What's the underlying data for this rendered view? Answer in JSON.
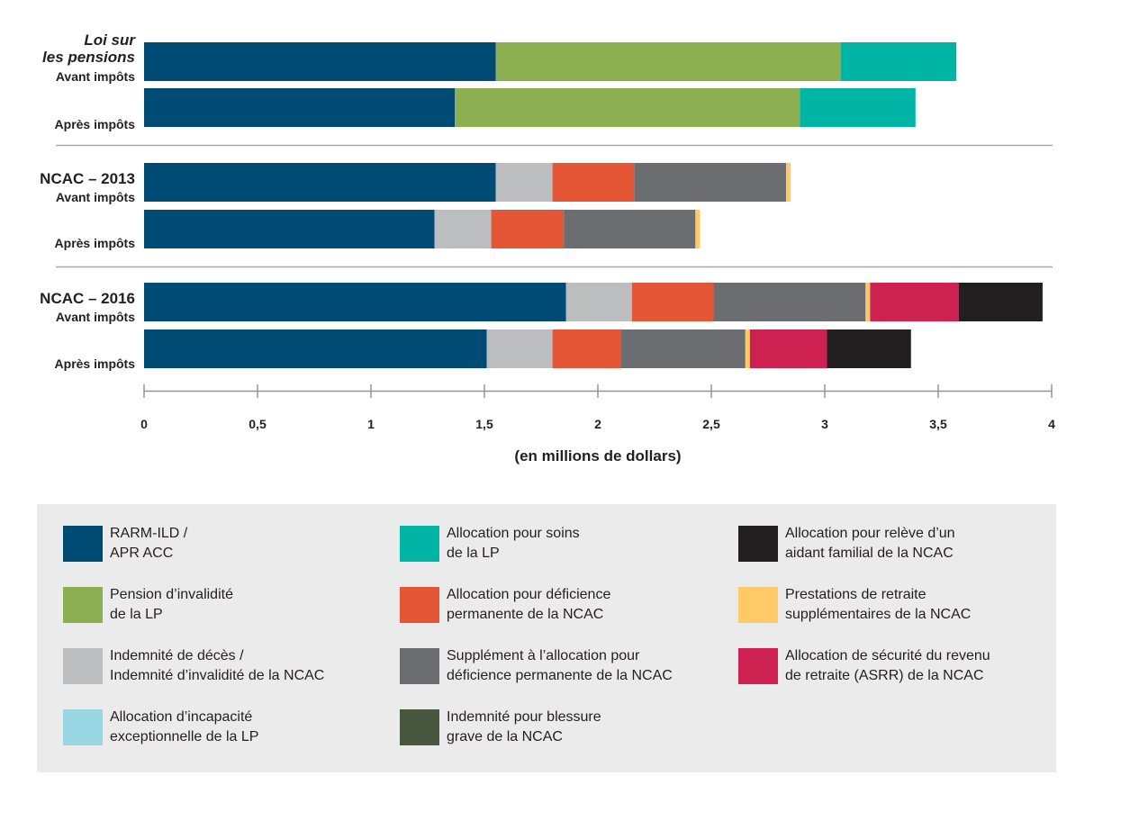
{
  "chart_data": {
    "type": "bar",
    "orientation": "horizontal",
    "stacked": true,
    "xlabel": "(en millions de dollars)",
    "xlim": [
      0,
      4
    ],
    "ticks": [
      "0",
      "0,5",
      "1",
      "1,5",
      "2",
      "2,5",
      "3",
      "3,5",
      "4"
    ],
    "groups": [
      {
        "title_lines": [
          "Loi sur",
          "les pensions"
        ],
        "italic": true,
        "bars": [
          {
            "label": "Avant impôts",
            "segments": [
              {
                "key": "rarm",
                "value": 1.55
              },
              {
                "key": "pension",
                "value": 1.52
              },
              {
                "key": "soins",
                "value": 0.51
              }
            ]
          },
          {
            "label": "Après impôts",
            "segments": [
              {
                "key": "rarm",
                "value": 1.37
              },
              {
                "key": "pension",
                "value": 1.52
              },
              {
                "key": "soins",
                "value": 0.51
              }
            ]
          }
        ]
      },
      {
        "title_lines": [
          "NCAC – 2013"
        ],
        "italic": false,
        "bars": [
          {
            "label": "Avant impôts",
            "segments": [
              {
                "key": "rarm",
                "value": 1.55
              },
              {
                "key": "deces",
                "value": 0.25
              },
              {
                "key": "deficience",
                "value": 0.36
              },
              {
                "key": "supplement",
                "value": 0.67
              },
              {
                "key": "retraite",
                "value": 0.02
              }
            ]
          },
          {
            "label": "Après impôts",
            "segments": [
              {
                "key": "rarm",
                "value": 1.28
              },
              {
                "key": "deces",
                "value": 0.25
              },
              {
                "key": "deficience",
                "value": 0.32
              },
              {
                "key": "supplement",
                "value": 0.58
              },
              {
                "key": "retraite",
                "value": 0.02
              }
            ]
          }
        ]
      },
      {
        "title_lines": [
          "NCAC – 2016"
        ],
        "italic": false,
        "bars": [
          {
            "label": "Avant impôts",
            "segments": [
              {
                "key": "rarm",
                "value": 1.86
              },
              {
                "key": "deces",
                "value": 0.29
              },
              {
                "key": "deficience",
                "value": 0.36
              },
              {
                "key": "supplement",
                "value": 0.67
              },
              {
                "key": "retraite",
                "value": 0.02
              },
              {
                "key": "asrr",
                "value": 0.39
              },
              {
                "key": "aidant",
                "value": 0.37
              }
            ]
          },
          {
            "label": "Après impôts",
            "segments": [
              {
                "key": "rarm",
                "value": 1.51
              },
              {
                "key": "deces",
                "value": 0.29
              },
              {
                "key": "deficience",
                "value": 0.3
              },
              {
                "key": "supplement",
                "value": 0.55
              },
              {
                "key": "retraite",
                "value": 0.02
              },
              {
                "key": "asrr",
                "value": 0.34
              },
              {
                "key": "aidant",
                "value": 0.37
              }
            ]
          }
        ]
      }
    ],
    "legend": [
      {
        "key": "rarm",
        "label": "RARM-ILD /\nAPR ACC",
        "color": "#004b74"
      },
      {
        "key": "pension",
        "label": "Pension d’invalidité\nde la LP",
        "color": "#8cb051"
      },
      {
        "key": "deces",
        "label": "Indemnité de décès /\nIndemnité d’invalidité de la NCAC",
        "color": "#bcbdbf"
      },
      {
        "key": "incapacite",
        "label": "Allocation d’incapacité\nexceptionnelle de la LP",
        "color": "#97d6e2"
      },
      {
        "key": "soins",
        "label": "Allocation pour soins\nde la LP",
        "color": "#00b5a3"
      },
      {
        "key": "deficience",
        "label": "Allocation pour déficience\npermanente de la NCAC",
        "color": "#e55636"
      },
      {
        "key": "supplement",
        "label": "Supplément à l’allocation pour\ndéficience permanente de la NCAC",
        "color": "#6c6d70"
      },
      {
        "key": "blessure",
        "label": "Indemnité pour blessure\ngrave de la NCAC",
        "color": "#47573d"
      },
      {
        "key": "aidant",
        "label": "Allocation pour relève d’un\naidant familial de la NCAC",
        "color": "#231f20"
      },
      {
        "key": "retraite",
        "label": "Prestations de retraite\nsupplémentaires de la NCAC",
        "color": "#fdca67"
      },
      {
        "key": "asrr",
        "label": "Allocation de sécurité du revenu\nde retraite (ASRR) de la NCAC",
        "color": "#cd2152"
      }
    ]
  }
}
